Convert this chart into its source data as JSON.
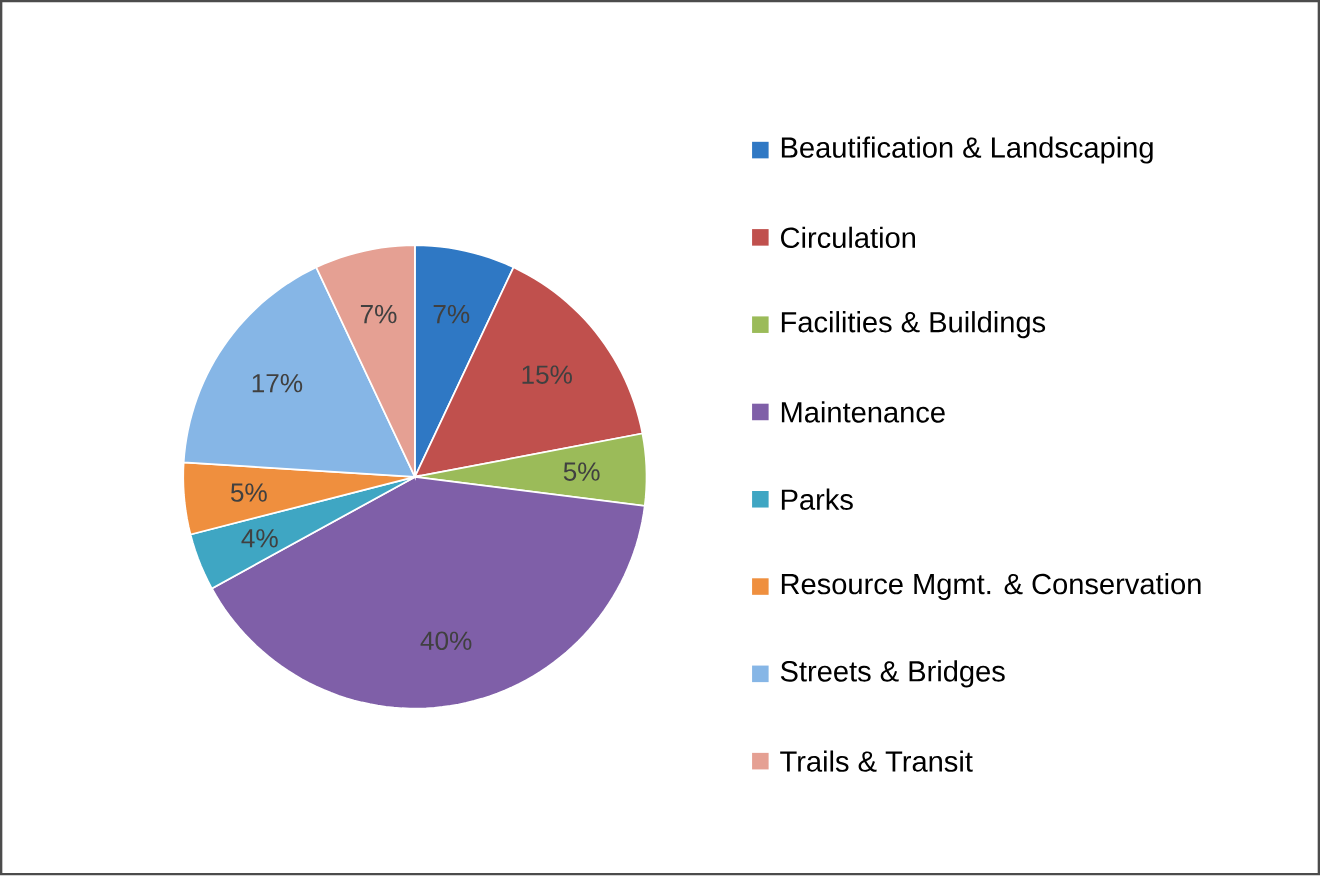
{
  "chart_data": {
    "type": "pie",
    "categories": [
      "Beautification & Landscaping",
      "Circulation",
      "Facilities & Buildings",
      "Maintenance",
      "Parks",
      "Resource Mgmt. & Conservation",
      "Streets & Bridges",
      "Trails & Transit"
    ],
    "values": [
      7,
      15,
      5,
      40,
      4,
      5,
      17,
      7
    ],
    "value_labels": [
      "7%",
      "15%",
      "5%",
      "40%",
      "4%",
      "5%",
      "17%",
      "7%"
    ],
    "colors": [
      "#2f78c4",
      "#c0504d",
      "#9bbb59",
      "#7f5fa8",
      "#3fa6c3",
      "#ef8f3e",
      "#86b6e6",
      "#e5a093"
    ],
    "legend": "right"
  }
}
